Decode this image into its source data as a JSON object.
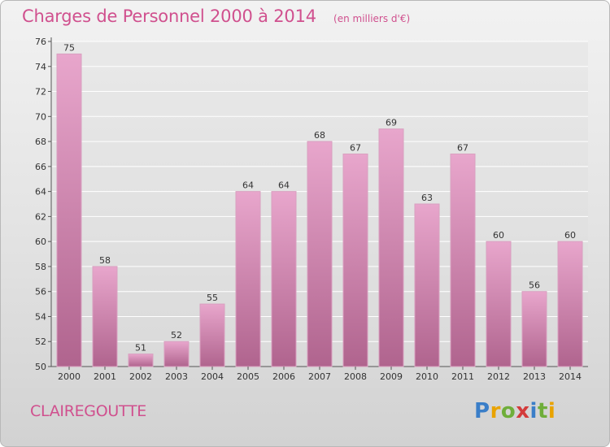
{
  "header": {
    "title": "Charges de Personnel 2000 à 2014",
    "subtitle": "(en milliers d'€)"
  },
  "footer": {
    "commune": "CLAIREGOUTTE",
    "logo": {
      "p": "P",
      "r": "r",
      "o": "o",
      "x": "x",
      "i": "i",
      "t": "t",
      "i2": "i"
    }
  },
  "colors": {
    "accent": "#d0508e",
    "bar_top": "#e8a6cc",
    "bar_bottom": "#b0648e",
    "grid": "#ffffff"
  },
  "chart_data": {
    "type": "bar",
    "title": "Charges de Personnel 2000 à 2014",
    "subtitle": "(en milliers d'€)",
    "categories": [
      "2000",
      "2001",
      "2002",
      "2003",
      "2004",
      "2005",
      "2006",
      "2007",
      "2008",
      "2009",
      "2010",
      "2011",
      "2012",
      "2013",
      "2014"
    ],
    "values": [
      75,
      58,
      51,
      52,
      55,
      64,
      64,
      68,
      67,
      69,
      63,
      67,
      60,
      56,
      60
    ],
    "ylim": [
      50,
      76
    ],
    "yticks": [
      50,
      52,
      54,
      56,
      58,
      60,
      62,
      64,
      66,
      68,
      70,
      72,
      74,
      76
    ],
    "grid": true,
    "xlabel": "",
    "ylabel": ""
  }
}
